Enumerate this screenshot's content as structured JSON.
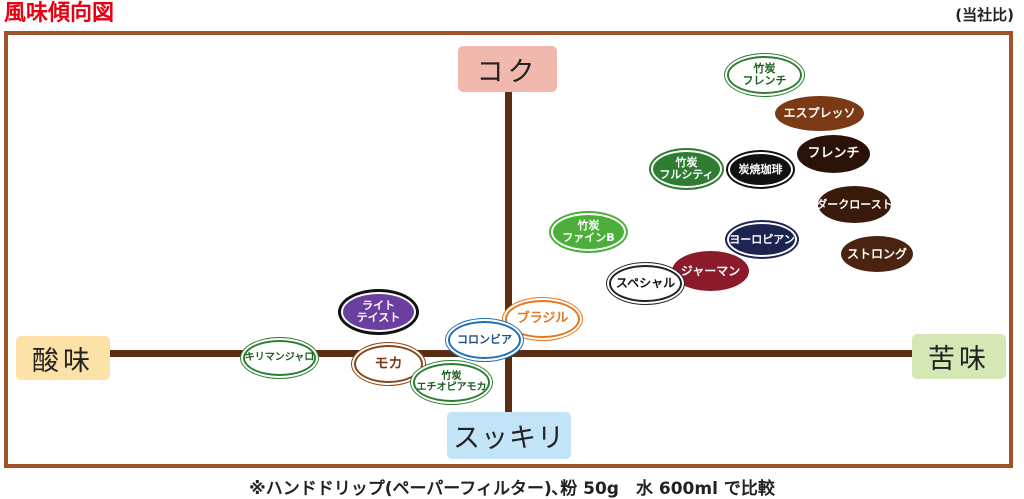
{
  "header": {
    "title": "風味傾向図",
    "note": "(当社比)"
  },
  "axes": {
    "top": "コク",
    "bottom": "スッキリ",
    "left": "酸味",
    "right": "苦味"
  },
  "beans": [
    {
      "id": "chikutan-french",
      "line1": "竹炭",
      "line2": "フレンチ"
    },
    {
      "id": "espresso",
      "line1": "エスプレッソ",
      "line2": ""
    },
    {
      "id": "french",
      "line1": "フレンチ",
      "line2": ""
    },
    {
      "id": "chikutan-fullcity",
      "line1": "竹炭",
      "line2": "フルシティ"
    },
    {
      "id": "sumiyaki",
      "line1": "炭焼珈琲",
      "line2": ""
    },
    {
      "id": "dark-roast",
      "line1": "ダークロースト",
      "line2": ""
    },
    {
      "id": "chikutan-fine-b",
      "line1": "竹炭",
      "line2": "ファインB"
    },
    {
      "id": "european",
      "line1": "ヨーロピアン",
      "line2": ""
    },
    {
      "id": "strong",
      "line1": "ストロング",
      "line2": ""
    },
    {
      "id": "german",
      "line1": "ジャーマン",
      "line2": ""
    },
    {
      "id": "special",
      "line1": "スペシャル",
      "line2": ""
    },
    {
      "id": "brazil",
      "line1": "ブラジル",
      "line2": ""
    },
    {
      "id": "light-taste",
      "line1": "ライト",
      "line2": "テイスト"
    },
    {
      "id": "colombia",
      "line1": "コロンビア",
      "line2": ""
    },
    {
      "id": "kilimanjaro",
      "line1": "キリマンジャロ",
      "line2": ""
    },
    {
      "id": "mocha",
      "line1": "モカ",
      "line2": ""
    },
    {
      "id": "chikutan-ethiopia-mocha",
      "line1": "竹炭",
      "line2": "エチオピアモカ"
    }
  ],
  "footer": "※ハンドドリップ(ペーパーフィルター)､粉 50g　水 600ml で比較",
  "colors": {
    "title": "#e60012",
    "frame": "#a0522d",
    "axis": "#5a2e14"
  }
}
